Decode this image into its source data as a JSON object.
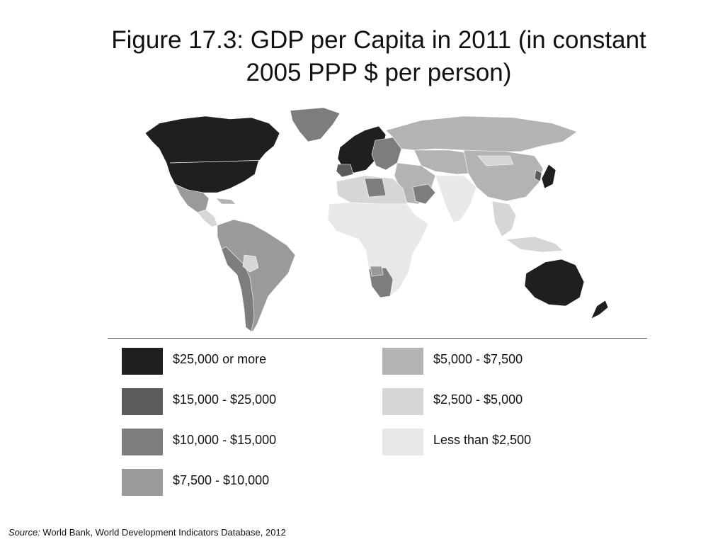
{
  "title": {
    "line1": "Figure 17.3: GDP per Capita in 2011 (in constant",
    "line2": "2005 PPP $ per person)"
  },
  "legend": {
    "items": [
      {
        "label": "$25,000 or more",
        "color": "#1f1f1f"
      },
      {
        "label": "$15,000 - $25,000",
        "color": "#5c5c5c"
      },
      {
        "label": "$10,000 - $15,000",
        "color": "#7d7d7d"
      },
      {
        "label": "$7,500 - $10,000",
        "color": "#9a9a9a"
      },
      {
        "label": "$5,000 - $7,500",
        "color": "#b3b3b3"
      },
      {
        "label": "$2,500 - $5,000",
        "color": "#d6d6d6"
      },
      {
        "label": "Less than $2,500",
        "color": "#e8e8e8"
      }
    ]
  },
  "source": {
    "prefix": "Source:",
    "text": " World Bank, World Development Indicators Database, 2012"
  }
}
